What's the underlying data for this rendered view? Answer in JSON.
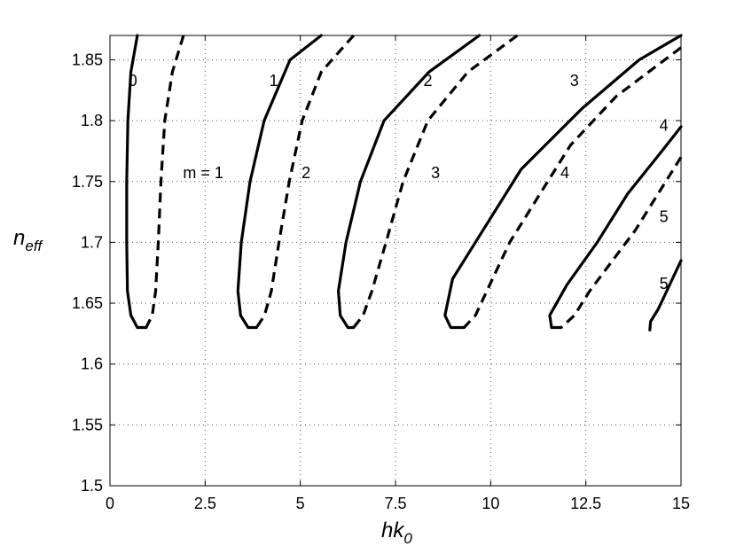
{
  "chart_data": {
    "type": "line",
    "title": "",
    "xlabel": "hk",
    "xlabel_sub": "0",
    "ylabel": "n",
    "ylabel_sub": "eff",
    "xlim": [
      0,
      15
    ],
    "ylim": [
      1.5,
      1.87
    ],
    "grid": true,
    "x_ticks": [
      0,
      2.5,
      5,
      7.5,
      10,
      12.5,
      15
    ],
    "x_tick_labels": [
      "0",
      "2.5",
      "5",
      "7.5",
      "10",
      "12.5",
      "15"
    ],
    "y_ticks": [
      1.5,
      1.55,
      1.6,
      1.65,
      1.7,
      1.75,
      1.8,
      1.85
    ],
    "y_tick_labels": [
      "1.5",
      "1.55",
      "1.6",
      "1.65",
      "1.7",
      "1.75",
      "1.8",
      "1.85"
    ],
    "series": [
      {
        "label": "0",
        "style": "solid",
        "points": [
          [
            0.72,
            1.87
          ],
          [
            0.55,
            1.84
          ],
          [
            0.47,
            1.8
          ],
          [
            0.44,
            1.75
          ],
          [
            0.44,
            1.7
          ],
          [
            0.46,
            1.66
          ],
          [
            0.55,
            1.64
          ],
          [
            0.72,
            1.63
          ],
          [
            0.95,
            1.63
          ]
        ]
      },
      {
        "label": "m = 1",
        "style": "dashed",
        "points": [
          [
            1.93,
            1.87
          ],
          [
            1.64,
            1.84
          ],
          [
            1.44,
            1.8
          ],
          [
            1.34,
            1.75
          ],
          [
            1.27,
            1.7
          ],
          [
            1.2,
            1.66
          ],
          [
            1.11,
            1.64
          ],
          [
            0.95,
            1.63
          ]
        ]
      },
      {
        "label": "1",
        "style": "solid",
        "points": [
          [
            5.55,
            1.87
          ],
          [
            4.73,
            1.85
          ],
          [
            4.05,
            1.8
          ],
          [
            3.68,
            1.75
          ],
          [
            3.45,
            1.7
          ],
          [
            3.36,
            1.66
          ],
          [
            3.43,
            1.64
          ],
          [
            3.63,
            1.63
          ],
          [
            3.85,
            1.63
          ]
        ]
      },
      {
        "label": "2",
        "style": "dashed",
        "points": [
          [
            6.4,
            1.87
          ],
          [
            5.55,
            1.84
          ],
          [
            5.05,
            1.8
          ],
          [
            4.71,
            1.75
          ],
          [
            4.44,
            1.7
          ],
          [
            4.24,
            1.66
          ],
          [
            4.06,
            1.64
          ],
          [
            3.85,
            1.63
          ]
        ]
      },
      {
        "label": "2",
        "style": "solid",
        "points": [
          [
            9.7,
            1.87
          ],
          [
            8.38,
            1.84
          ],
          [
            7.2,
            1.8
          ],
          [
            6.58,
            1.75
          ],
          [
            6.2,
            1.7
          ],
          [
            6.0,
            1.66
          ],
          [
            6.05,
            1.64
          ],
          [
            6.25,
            1.63
          ],
          [
            6.4,
            1.63
          ]
        ]
      },
      {
        "label": "3",
        "style": "dashed",
        "points": [
          [
            10.7,
            1.87
          ],
          [
            9.4,
            1.84
          ],
          [
            8.35,
            1.8
          ],
          [
            7.7,
            1.75
          ],
          [
            7.25,
            1.7
          ],
          [
            6.88,
            1.66
          ],
          [
            6.65,
            1.64
          ],
          [
            6.4,
            1.63
          ]
        ]
      },
      {
        "label": "3",
        "style": "solid",
        "points": [
          [
            15.0,
            1.87
          ],
          [
            13.9,
            1.85
          ],
          [
            12.4,
            1.81
          ],
          [
            10.8,
            1.76
          ],
          [
            9.8,
            1.71
          ],
          [
            9.0,
            1.67
          ],
          [
            8.8,
            1.64
          ],
          [
            8.95,
            1.63
          ],
          [
            9.3,
            1.63
          ]
        ]
      },
      {
        "label": "4",
        "style": "dashed",
        "points": [
          [
            15.0,
            1.86
          ],
          [
            13.3,
            1.82
          ],
          [
            12.1,
            1.78
          ],
          [
            11.3,
            1.74
          ],
          [
            10.5,
            1.7
          ],
          [
            9.9,
            1.66
          ],
          [
            9.6,
            1.64
          ],
          [
            9.3,
            1.63
          ]
        ]
      },
      {
        "label": "4",
        "style": "solid",
        "points": [
          [
            15.0,
            1.795
          ],
          [
            14.5,
            1.775
          ],
          [
            13.6,
            1.74
          ],
          [
            12.8,
            1.7
          ],
          [
            12.0,
            1.665
          ],
          [
            11.55,
            1.64
          ],
          [
            11.6,
            1.63
          ],
          [
            11.85,
            1.63
          ]
        ]
      },
      {
        "label": "5",
        "style": "dashed",
        "points": [
          [
            15.0,
            1.77
          ],
          [
            14.4,
            1.74
          ],
          [
            13.8,
            1.71
          ],
          [
            13.2,
            1.685
          ],
          [
            12.6,
            1.66
          ],
          [
            12.2,
            1.64
          ],
          [
            11.85,
            1.63
          ]
        ]
      },
      {
        "label": "5",
        "style": "solid",
        "points": [
          [
            15.0,
            1.685
          ],
          [
            14.7,
            1.665
          ],
          [
            14.4,
            1.645
          ],
          [
            14.2,
            1.635
          ],
          [
            14.18,
            1.628
          ]
        ]
      }
    ],
    "annotations": [
      {
        "text": "0",
        "x": 0.6,
        "y": 1.833
      },
      {
        "text": "m = 1",
        "x": 2.45,
        "y": 1.757
      },
      {
        "text": "1",
        "x": 4.3,
        "y": 1.833
      },
      {
        "text": "2",
        "x": 5.15,
        "y": 1.757
      },
      {
        "text": "2",
        "x": 8.35,
        "y": 1.833
      },
      {
        "text": "3",
        "x": 8.55,
        "y": 1.757
      },
      {
        "text": "3",
        "x": 12.2,
        "y": 1.833
      },
      {
        "text": "4",
        "x": 11.95,
        "y": 1.757
      },
      {
        "text": "4",
        "x": 14.55,
        "y": 1.796
      },
      {
        "text": "5",
        "x": 14.55,
        "y": 1.721
      },
      {
        "text": "5",
        "x": 14.55,
        "y": 1.666
      }
    ]
  }
}
